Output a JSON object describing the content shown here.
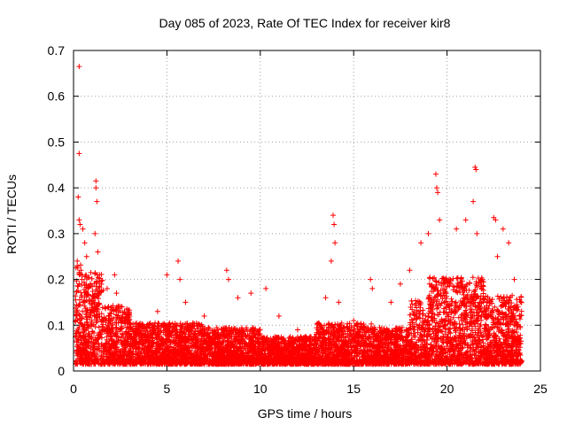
{
  "chart_data": {
    "type": "scatter",
    "title": "Day 085 of 2023, Rate Of TEC Index for receiver kir8",
    "xlabel": "GPS time / hours",
    "ylabel": "ROTI / TECUs",
    "xlim": [
      0,
      25
    ],
    "ylim": [
      0,
      0.7
    ],
    "xticks": [
      0,
      5,
      10,
      15,
      20,
      25
    ],
    "yticks": [
      0,
      0.1,
      0.2,
      0.3,
      0.4,
      0.5,
      0.6,
      0.7
    ],
    "xtick_labels": [
      "0",
      "5",
      "10",
      "15",
      "20",
      "25"
    ],
    "ytick_labels": [
      "0",
      "0.1",
      "0.2",
      "0.3",
      "0.4",
      "0.5",
      "0.6",
      "0.7"
    ],
    "grid": true,
    "marker": "+",
    "color": "#ff0000",
    "series": [
      {
        "name": "ROTI",
        "points": [
          [
            0.3,
            0.665
          ],
          [
            0.3,
            0.475
          ],
          [
            0.25,
            0.38
          ],
          [
            0.3,
            0.33
          ],
          [
            0.35,
            0.32
          ],
          [
            1.2,
            0.415
          ],
          [
            1.2,
            0.4
          ],
          [
            1.25,
            0.37
          ],
          [
            1.15,
            0.3
          ],
          [
            1.3,
            0.26
          ],
          [
            0.5,
            0.31
          ],
          [
            0.6,
            0.28
          ],
          [
            0.7,
            0.25
          ],
          [
            0.2,
            0.24
          ],
          [
            0.4,
            0.22
          ],
          [
            2.2,
            0.21
          ],
          [
            2.3,
            0.17
          ],
          [
            1.8,
            0.18
          ],
          [
            2.6,
            0.14
          ],
          [
            3.0,
            0.12
          ],
          [
            5.0,
            0.21
          ],
          [
            5.6,
            0.24
          ],
          [
            5.7,
            0.2
          ],
          [
            4.5,
            0.13
          ],
          [
            6.0,
            0.15
          ],
          [
            7.0,
            0.12
          ],
          [
            8.2,
            0.22
          ],
          [
            8.3,
            0.2
          ],
          [
            8.8,
            0.16
          ],
          [
            9.5,
            0.17
          ],
          [
            10.3,
            0.18
          ],
          [
            11.0,
            0.12
          ],
          [
            12.0,
            0.09
          ],
          [
            13.0,
            0.08
          ],
          [
            13.5,
            0.16
          ],
          [
            13.9,
            0.34
          ],
          [
            13.95,
            0.32
          ],
          [
            14.0,
            0.28
          ],
          [
            13.8,
            0.24
          ],
          [
            14.2,
            0.15
          ],
          [
            15.0,
            0.11
          ],
          [
            15.9,
            0.2
          ],
          [
            16.0,
            0.18
          ],
          [
            17.0,
            0.15
          ],
          [
            17.5,
            0.19
          ],
          [
            18.0,
            0.22
          ],
          [
            18.6,
            0.28
          ],
          [
            19.0,
            0.3
          ],
          [
            19.4,
            0.43
          ],
          [
            19.45,
            0.4
          ],
          [
            19.5,
            0.39
          ],
          [
            19.6,
            0.33
          ],
          [
            20.5,
            0.31
          ],
          [
            21.0,
            0.33
          ],
          [
            21.4,
            0.37
          ],
          [
            21.5,
            0.445
          ],
          [
            21.55,
            0.44
          ],
          [
            21.6,
            0.3
          ],
          [
            22.5,
            0.335
          ],
          [
            22.6,
            0.33
          ],
          [
            22.7,
            0.25
          ],
          [
            23.0,
            0.31
          ],
          [
            23.3,
            0.28
          ],
          [
            23.6,
            0.2
          ],
          [
            23.8,
            0.14
          ]
        ]
      }
    ]
  }
}
